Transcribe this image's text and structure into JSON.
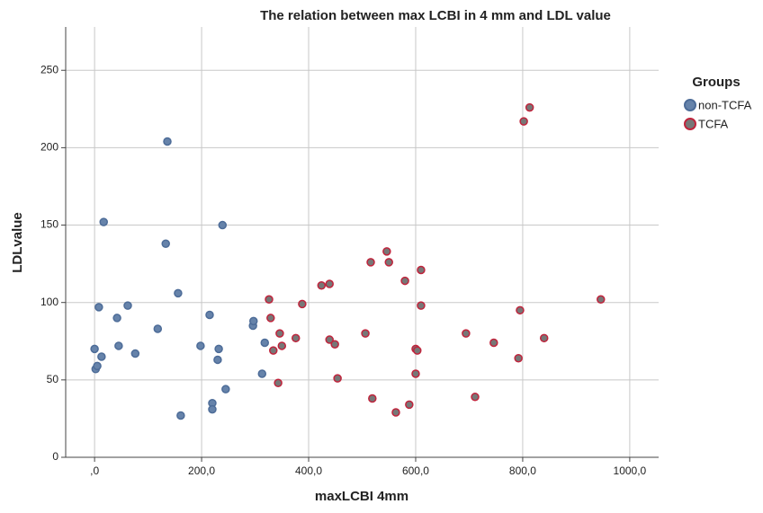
{
  "chart_data": {
    "type": "scatter",
    "title": "The relation between max LCBI in 4 mm and LDL value",
    "xlabel": "maxLCBI 4mm",
    "ylabel": "LDLvalue",
    "legend_title": "Groups",
    "legend": "right",
    "grid": true,
    "xlim": [
      -54,
      1054
    ],
    "ylim": [
      0,
      278
    ],
    "xticks": [
      {
        "value": 0,
        "label": ",0"
      },
      {
        "value": 200,
        "label": "200,0"
      },
      {
        "value": 400,
        "label": "400,0"
      },
      {
        "value": 600,
        "label": "600,0"
      },
      {
        "value": 800,
        "label": "800,0"
      },
      {
        "value": 1000,
        "label": "1000,0"
      }
    ],
    "yticks": [
      0,
      50,
      100,
      150,
      200,
      250
    ],
    "series": [
      {
        "name": "non-TCFA",
        "color": "#6683aa",
        "edgecolor": "#4d6c98",
        "x": [
          0,
          2,
          5,
          8,
          13,
          17,
          42,
          45,
          62,
          76,
          118,
          133,
          136,
          156,
          161,
          198,
          215,
          220,
          220,
          230,
          232,
          239,
          245,
          296,
          297,
          318,
          313
        ],
        "values": [
          70,
          57,
          59,
          97,
          65,
          152,
          90,
          72,
          98,
          67,
          83,
          138,
          204,
          106,
          27,
          72,
          92,
          35,
          31,
          63,
          70,
          150,
          44,
          85,
          88,
          74,
          54
        ]
      },
      {
        "name": "TCFA",
        "color": "#777777",
        "edgecolor": "#c0243c",
        "x": [
          326,
          329,
          334,
          343,
          346,
          350,
          376,
          388,
          424,
          439,
          439,
          449,
          454,
          506,
          516,
          519,
          546,
          550,
          563,
          580,
          588,
          600,
          600,
          603,
          610,
          610,
          694,
          711,
          746,
          792,
          795,
          802,
          813,
          840,
          946
        ],
        "values": [
          102,
          90,
          69,
          48,
          80,
          72,
          77,
          99,
          111,
          112,
          76,
          73,
          51,
          80,
          126,
          38,
          133,
          126,
          29,
          114,
          34,
          54,
          70,
          69,
          121,
          98,
          80,
          39,
          74,
          64,
          95,
          217,
          226,
          77,
          102
        ]
      }
    ]
  }
}
